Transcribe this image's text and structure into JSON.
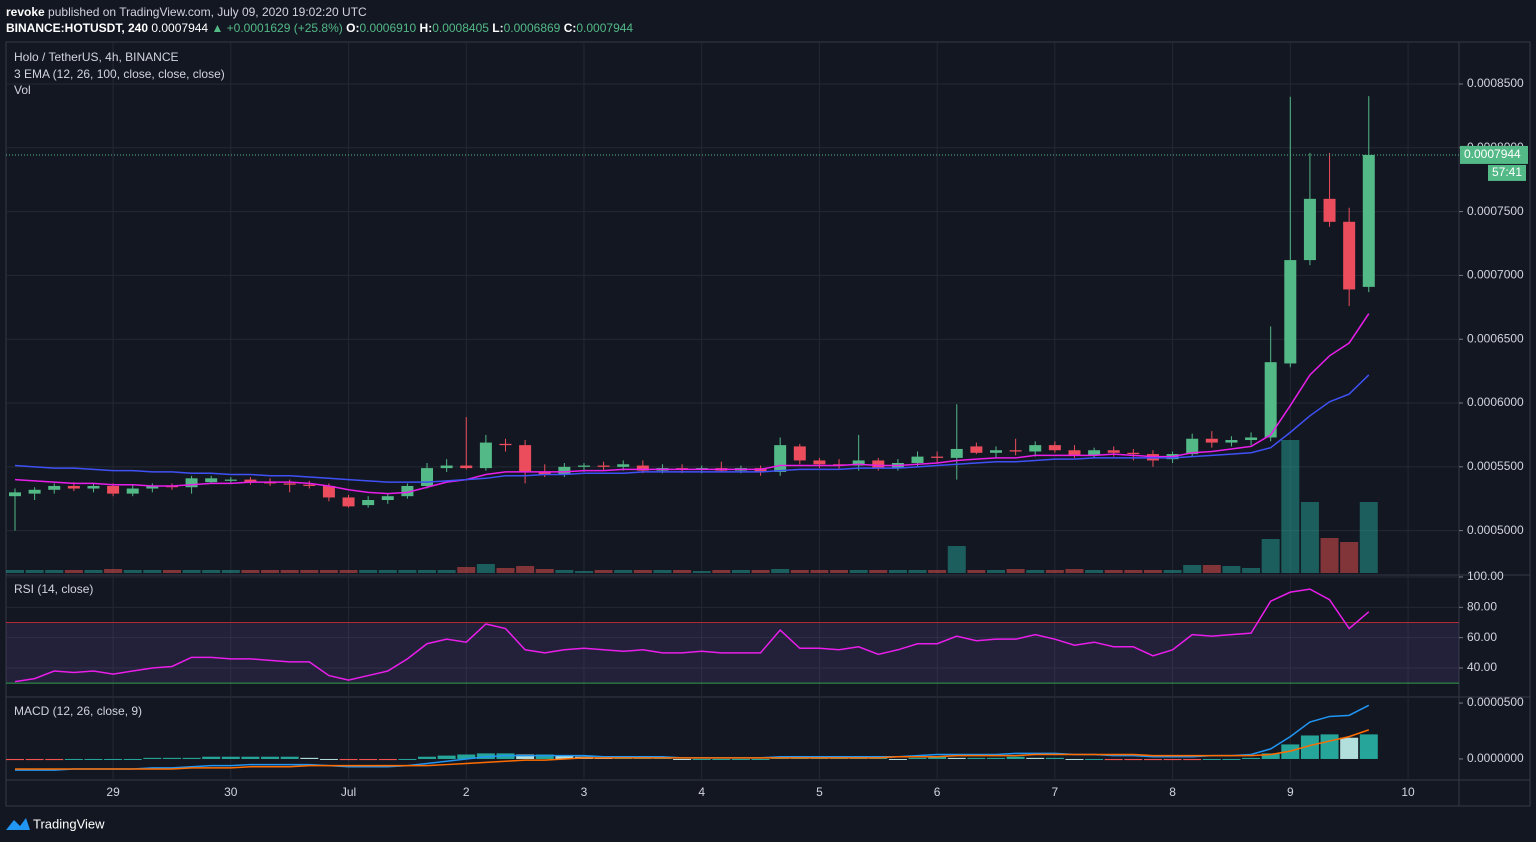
{
  "header": {
    "publisher": "revoke",
    "published": "published on TradingView.com, July 09, 2020 19:02:20 UTC",
    "symbol": "BINANCE:HOTUSDT, 240",
    "price": "0.0007944",
    "change": "▲ +0.0001629 (+25.8%)",
    "o_label": "O:",
    "o": "0.0006910",
    "h_label": "H:",
    "h": "0.0008405",
    "l_label": "L:",
    "l": "0.0006869",
    "c_label": "C:",
    "c": "0.0007944"
  },
  "footer": {
    "brand": "TradingView"
  },
  "chart_data": [
    {
      "type": "candlestick",
      "title": "Holo / TetherUS, 4h, BINANCE",
      "indicator": "3 EMA (12, 26, 100, close, close, close)",
      "countdown": "57:41",
      "up_color": "#53b987",
      "down_color": "#eb4d5c",
      "grid": true,
      "categories": [
        null,
        null,
        null,
        null,
        null,
        "29",
        null,
        null,
        null,
        null,
        null,
        "30",
        null,
        null,
        null,
        null,
        null,
        "Jul",
        null,
        null,
        null,
        null,
        null,
        "2",
        null,
        null,
        null,
        null,
        null,
        "3",
        null,
        null,
        null,
        null,
        null,
        "4",
        null,
        null,
        null,
        null,
        null,
        "5",
        null,
        null,
        null,
        null,
        null,
        "6",
        null,
        null,
        null,
        null,
        null,
        "7",
        null,
        null,
        null,
        null,
        null,
        "8",
        null,
        null,
        null,
        null,
        null,
        "9",
        null,
        null,
        null,
        null,
        null,
        "10"
      ],
      "open": [
        0.000527,
        0.000529,
        0.000532,
        0.000535,
        0.000533,
        0.000535,
        0.000529,
        0.000533,
        0.000535,
        0.000534,
        0.000538,
        0.000539,
        0.00054,
        0.000538,
        0.000537,
        0.000536,
        0.000535,
        0.000526,
        0.00052,
        0.000524,
        0.000527,
        0.000535,
        0.000549,
        0.000551,
        0.000549,
        0.000568,
        0.000567,
        0.000546,
        0.000544,
        0.00055,
        0.000551,
        0.00055,
        0.000551,
        0.000547,
        0.000549,
        0.000548,
        0.000549,
        0.000547,
        0.000549,
        0.000546,
        0.000566,
        0.000555,
        0.000552,
        0.000551,
        0.000555,
        0.000549,
        0.000553,
        0.000558,
        0.000557,
        0.000566,
        0.000561,
        0.000563,
        0.000562,
        0.000567,
        0.000563,
        0.000559,
        0.000563,
        0.000561,
        0.00056,
        0.000556,
        0.00056,
        0.000572,
        0.000569,
        0.000571,
        0.000573,
        0.000631,
        0.000712,
        0.00076,
        0.000742,
        0.000691,
        null,
        null
      ],
      "high": [
        0.000533,
        0.000534,
        0.000537,
        0.000538,
        0.000537,
        0.000537,
        0.000536,
        0.000537,
        0.000537,
        0.000543,
        0.000543,
        0.000542,
        0.000542,
        0.000541,
        0.00054,
        0.000539,
        0.000537,
        0.000528,
        0.000527,
        0.000529,
        0.000537,
        0.000553,
        0.000556,
        0.000589,
        0.000575,
        0.000572,
        0.000571,
        0.000552,
        0.000553,
        0.000553,
        0.000554,
        0.000555,
        0.000555,
        0.000552,
        0.000552,
        0.000551,
        0.000554,
        0.000551,
        0.000551,
        0.000573,
        0.000568,
        0.000557,
        0.000556,
        0.000575,
        0.000557,
        0.000556,
        0.000562,
        0.000562,
        0.000599,
        0.000569,
        0.000566,
        0.000572,
        0.00057,
        0.00057,
        0.000567,
        0.000565,
        0.000566,
        0.000564,
        0.000563,
        0.000562,
        0.000576,
        0.000578,
        0.000574,
        0.000577,
        0.00066,
        0.00084,
        0.000796,
        0.000796,
        0.000753,
        0.0008405,
        null,
        null
      ],
      "low": [
        0.0005,
        0.000524,
        0.000529,
        0.000531,
        0.00053,
        0.000527,
        0.000527,
        0.00053,
        0.000532,
        0.000529,
        0.000537,
        0.000537,
        0.000536,
        0.000535,
        0.00053,
        0.000533,
        0.000523,
        0.000518,
        0.000518,
        0.000521,
        0.000525,
        0.000533,
        0.000546,
        0.000548,
        0.000547,
        0.000562,
        0.000537,
        0.000542,
        0.000542,
        0.000546,
        0.000547,
        0.000547,
        0.000545,
        0.000545,
        0.000545,
        0.000545,
        0.000546,
        0.000545,
        0.000543,
        0.000543,
        0.000552,
        0.000549,
        0.000548,
        0.000547,
        0.000547,
        0.000547,
        0.00055,
        0.000553,
        0.00054,
        0.00056,
        0.000557,
        0.000559,
        0.000558,
        0.000561,
        0.000557,
        0.000557,
        0.000558,
        0.000555,
        0.00055,
        0.000553,
        0.000558,
        0.000565,
        0.000566,
        0.000567,
        0.00057,
        0.000628,
        0.000708,
        0.000738,
        0.000676,
        0.0006869,
        null,
        null
      ],
      "close": [
        0.00053,
        0.000532,
        0.000535,
        0.000533,
        0.000535,
        0.000529,
        0.000533,
        0.000535,
        0.000534,
        0.000541,
        0.000541,
        0.00054,
        0.000538,
        0.000537,
        0.000536,
        0.000535,
        0.000526,
        0.000519,
        0.000524,
        0.000527,
        0.000535,
        0.000549,
        0.000551,
        0.000549,
        0.000569,
        0.000567,
        0.000546,
        0.000544,
        0.00055,
        0.000551,
        0.00055,
        0.000552,
        0.000547,
        0.000549,
        0.000548,
        0.000549,
        0.000547,
        0.000549,
        0.000546,
        0.000567,
        0.000555,
        0.000552,
        0.000551,
        0.000555,
        0.000549,
        0.000553,
        0.000558,
        0.000557,
        0.000564,
        0.000561,
        0.000563,
        0.000562,
        0.000567,
        0.000563,
        0.000559,
        0.000563,
        0.000561,
        0.00056,
        0.000555,
        0.00056,
        0.000572,
        0.000569,
        0.000571,
        0.000573,
        0.000632,
        0.000712,
        0.00076,
        0.000742,
        0.000689,
        0.0007944,
        null,
        null
      ],
      "series": [
        {
          "color": "#e91eeb",
          "values": [
            0.00054,
            0.000539,
            0.000538,
            0.000537,
            0.000537,
            0.000536,
            0.000536,
            0.000535,
            0.000535,
            0.000536,
            0.000537,
            0.000537,
            0.000538,
            0.000538,
            0.000538,
            0.000537,
            0.000535,
            0.000532,
            0.00053,
            0.000529,
            0.00053,
            0.000534,
            0.000538,
            0.00054,
            0.000544,
            0.000546,
            0.000546,
            0.000546,
            0.000546,
            0.000547,
            0.000547,
            0.000548,
            0.000548,
            0.000548,
            0.000548,
            0.000548,
            0.000548,
            0.000548,
            0.000548,
            0.000551,
            0.000551,
            0.000551,
            0.000551,
            0.000552,
            0.000551,
            0.000551,
            0.000552,
            0.000553,
            0.000555,
            0.000556,
            0.000557,
            0.000557,
            0.000559,
            0.000559,
            0.000559,
            0.000559,
            0.00056,
            0.000559,
            0.000558,
            0.000558,
            0.000561,
            0.000562,
            0.000564,
            0.000566,
            0.000575,
            0.000598,
            0.000622,
            0.000637,
            0.000647,
            0.00067,
            null,
            null
          ]
        },
        {
          "color": "#3f51f5",
          "values": [
            0.000551,
            0.00055,
            0.000549,
            0.000549,
            0.000548,
            0.000547,
            0.000547,
            0.000546,
            0.000546,
            0.000545,
            0.000545,
            0.000544,
            0.000544,
            0.000543,
            0.000543,
            0.000542,
            0.000541,
            0.00054,
            0.000539,
            0.000538,
            0.000538,
            0.000538,
            0.000539,
            0.00054,
            0.000541,
            0.000543,
            0.000543,
            0.000544,
            0.000544,
            0.000545,
            0.000545,
            0.000545,
            0.000546,
            0.000546,
            0.000546,
            0.000546,
            0.000546,
            0.000546,
            0.000546,
            0.000547,
            0.000548,
            0.000548,
            0.000548,
            0.000549,
            0.000549,
            0.000549,
            0.00055,
            0.000551,
            0.000552,
            0.000553,
            0.000554,
            0.000554,
            0.000555,
            0.000556,
            0.000556,
            0.000557,
            0.000557,
            0.000557,
            0.000557,
            0.000557,
            0.000558,
            0.000559,
            0.00056,
            0.000561,
            0.000565,
            0.000577,
            0.00059,
            0.000601,
            0.000607,
            0.000622,
            null,
            null
          ]
        }
      ],
      "ylim": [
        0.0004668,
        0.0008829
      ],
      "yticks": [
        {
          "value": 0.0005,
          "label": "0.0005000"
        },
        {
          "value": 0.00055,
          "label": "0.0005500"
        },
        {
          "value": 0.0006,
          "label": "0.0006000"
        },
        {
          "value": 0.00065,
          "label": "0.0006500"
        },
        {
          "value": 0.0007,
          "label": "0.0007000"
        },
        {
          "value": 0.00075,
          "label": "0.0007500"
        },
        {
          "value": 0.0008,
          "label": "0.0008000"
        },
        {
          "value": 0.00085,
          "label": "0.0008500"
        }
      ]
    },
    {
      "type": "bar",
      "title": "Vol",
      "up_color": "#26a69a",
      "down_color": "#ef5350",
      "opacity": 0.5,
      "ylim": [
        0,
        531
      ],
      "values": [
        3,
        3,
        3,
        3,
        3,
        4,
        3,
        3,
        3,
        3,
        3,
        3,
        3,
        3,
        3,
        3,
        3,
        3,
        3,
        3,
        3,
        3,
        3,
        6,
        9,
        5,
        7,
        4,
        3,
        2,
        3,
        3,
        3,
        3,
        3,
        2,
        3,
        3,
        3,
        4,
        3,
        3,
        3,
        3,
        3,
        3,
        3,
        3,
        27,
        3,
        3,
        4,
        3,
        3,
        4,
        3,
        3,
        3,
        3,
        3,
        8,
        8,
        7,
        5,
        34,
        133,
        71,
        35,
        31,
        71,
        null,
        null
      ]
    },
    {
      "type": "line",
      "title": "RSI (14, close)",
      "color": "#e91eeb",
      "ylim": [
        22.2,
        101.3
      ],
      "grid": true,
      "band_lines": [
        {
          "value": 70,
          "color": "#b22833"
        },
        {
          "value": 30,
          "color": "#2e9e4a"
        }
      ],
      "yticks": [
        {
          "value": 100,
          "label": "100.00"
        },
        {
          "value": 80,
          "label": "80.00"
        },
        {
          "value": 60,
          "label": "60.00"
        },
        {
          "value": 40,
          "label": "40.00"
        }
      ],
      "values": [
        31,
        33,
        38,
        37,
        38,
        36,
        38,
        40,
        41,
        47,
        47,
        46,
        46,
        45,
        44,
        44,
        35,
        32,
        35,
        38,
        46,
        56,
        59,
        57,
        69,
        66,
        52,
        50,
        52,
        53,
        52,
        51,
        52,
        50,
        50,
        51,
        50,
        50,
        50,
        65,
        53,
        53,
        52,
        54,
        49,
        52,
        56,
        56,
        61,
        58,
        59,
        59,
        62,
        59,
        55,
        57,
        54,
        54,
        48,
        52,
        62,
        61,
        62,
        63,
        84,
        90,
        92,
        85,
        66,
        77,
        null,
        null
      ]
    },
    {
      "type": "macd",
      "title": "MACD (12, 26, close, 9)",
      "ylim": [
        -1.88e-05,
        5.54e-05
      ],
      "yticks": [
        {
          "value": 5e-05,
          "label": "0.0000500"
        },
        {
          "value": 0,
          "label": "0.0000000"
        }
      ],
      "series": [
        {
          "color": "#2196f3",
          "values": [
            -1e-05,
            -1e-05,
            -1e-05,
            -9e-06,
            -9e-06,
            -9e-06,
            -9e-06,
            -8e-06,
            -8e-06,
            -7e-06,
            -6e-06,
            -6e-06,
            -5e-06,
            -5e-06,
            -5e-06,
            -5e-06,
            -6e-06,
            -7e-06,
            -7e-06,
            -7e-06,
            -6e-06,
            -4e-06,
            -2e-06,
            0,
            2e-06,
            3e-06,
            3e-06,
            3e-06,
            3e-06,
            3e-06,
            2e-06,
            2e-06,
            2e-06,
            2e-06,
            1e-06,
            1e-06,
            1e-06,
            1e-06,
            1e-06,
            2e-06,
            2e-06,
            2e-06,
            2e-06,
            2e-06,
            2e-06,
            2e-06,
            3e-06,
            4e-06,
            4e-06,
            4e-06,
            4e-06,
            5e-06,
            5e-06,
            5e-06,
            4e-06,
            4e-06,
            3e-06,
            3e-06,
            2e-06,
            2e-06,
            2e-06,
            3e-06,
            3e-06,
            4e-06,
            9e-06,
            2e-05,
            3.3e-05,
            3.8e-05,
            3.9e-05,
            4.8e-05,
            null,
            null
          ]
        },
        {
          "color": "#ff6d00",
          "values": [
            -9e-06,
            -9e-06,
            -9e-06,
            -9e-06,
            -9e-06,
            -9e-06,
            -9e-06,
            -9e-06,
            -9e-06,
            -8e-06,
            -8e-06,
            -8e-06,
            -7e-06,
            -7e-06,
            -7e-06,
            -6e-06,
            -6e-06,
            -6e-06,
            -6e-06,
            -6e-06,
            -6e-06,
            -6e-06,
            -5e-06,
            -4e-06,
            -3e-06,
            -2e-06,
            -1e-06,
            -1e-06,
            0,
            1e-06,
            1e-06,
            1e-06,
            1e-06,
            1e-06,
            1e-06,
            1e-06,
            1e-06,
            1e-06,
            1e-06,
            1e-06,
            1e-06,
            1e-06,
            1e-06,
            1e-06,
            1e-06,
            2e-06,
            2e-06,
            2e-06,
            3e-06,
            3e-06,
            3e-06,
            3e-06,
            4e-06,
            4e-06,
            4e-06,
            4e-06,
            4e-06,
            4e-06,
            3e-06,
            3e-06,
            3e-06,
            3e-06,
            3e-06,
            3e-06,
            4e-06,
            7e-06,
            1.2e-05,
            1.6e-05,
            2e-05,
            2.6e-05,
            null,
            null
          ]
        }
      ],
      "histogram": [
        -1e-06,
        -1e-06,
        -1e-06,
        0,
        0,
        0,
        0,
        1e-06,
        1e-06,
        1e-06,
        2e-06,
        2e-06,
        2e-06,
        2e-06,
        2e-06,
        1e-06,
        0,
        -1e-06,
        -1e-06,
        -1e-06,
        0,
        2e-06,
        3e-06,
        4e-06,
        5e-06,
        5e-06,
        4e-06,
        4e-06,
        3e-06,
        2e-06,
        1e-06,
        1e-06,
        1e-06,
        1e-06,
        0,
        0,
        0,
        0,
        0,
        1e-06,
        1e-06,
        1e-06,
        1e-06,
        1e-06,
        1e-06,
        0,
        1e-06,
        2e-06,
        1e-06,
        1e-06,
        1e-06,
        2e-06,
        1e-06,
        1e-06,
        0,
        0,
        -1e-06,
        -1e-06,
        -1e-06,
        -1e-06,
        -1e-06,
        0,
        0,
        1e-06,
        5e-06,
        1.3e-05,
        2.1e-05,
        2.2e-05,
        1.9e-05,
        2.2e-05,
        null,
        null
      ]
    }
  ]
}
